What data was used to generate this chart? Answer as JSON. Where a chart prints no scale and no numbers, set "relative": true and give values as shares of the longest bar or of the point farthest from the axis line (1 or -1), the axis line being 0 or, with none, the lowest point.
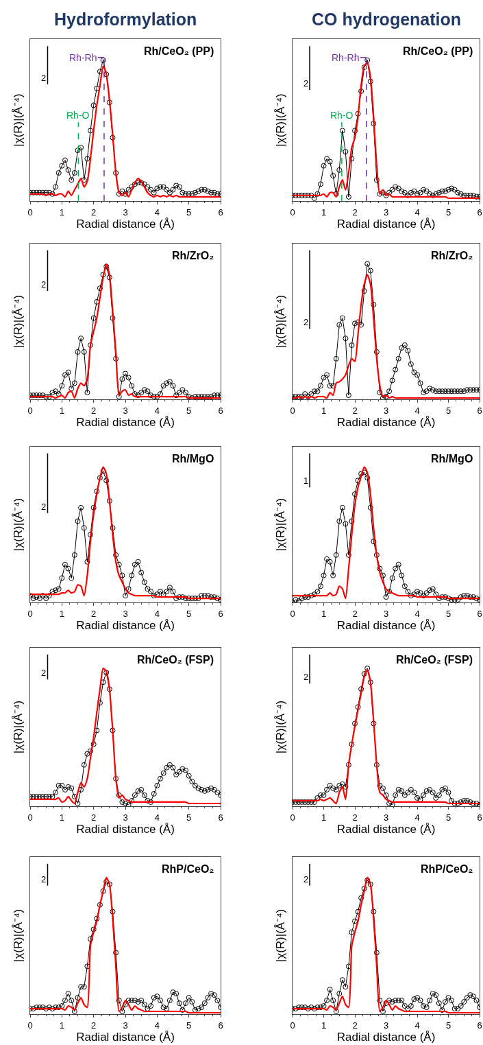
{
  "chart_data": [
    {
      "type": "line",
      "title": "Hydroformylation",
      "xlabel": "Radial distance (Å)",
      "ylabel": "|χ(R)|(Å⁻⁴)",
      "relative": true,
      "xlim": [
        0,
        6
      ],
      "xticks": [
        0,
        1,
        2,
        3,
        4,
        5,
        6
      ],
      "tick_labels": "x",
      "grid": false,
      "legend": false,
      "annotations": [
        "Rh/CeO₂ (PP)",
        "2"
      ],
      "ref_lines": [
        {
          "axis": "x",
          "value": 2.33,
          "label": "Rh-Rh",
          "color": "#7030a0",
          "line_style": "dashed"
        },
        {
          "axis": "x",
          "value": 1.52,
          "label": "Rh-O",
          "color": "#00b050",
          "line_style": "dashed"
        }
      ],
      "x": [
        0,
        0.1,
        0.2,
        0.3,
        0.4,
        0.5,
        0.6,
        0.7,
        0.8,
        0.9,
        1,
        1.1,
        1.2,
        1.3,
        1.4,
        1.5,
        1.6,
        1.7,
        1.8,
        1.9,
        2,
        2.1,
        2.2,
        2.3,
        2.4,
        2.5,
        2.6,
        2.7,
        2.8,
        2.9,
        3,
        3.1,
        3.2,
        3.3,
        3.4,
        3.5,
        3.6,
        3.7,
        3.8,
        3.9,
        4,
        4.1,
        4.2,
        4.3,
        4.4,
        4.5,
        4.6,
        4.7,
        4.8,
        4.9,
        5,
        5.1,
        5.2,
        5.3,
        5.4,
        5.5,
        5.6,
        5.7,
        5.8,
        5.9,
        6
      ],
      "series": [
        {
          "color": "#000000",
          "marker": "circle",
          "values": [
            0.06,
            0.06,
            0.06,
            0.06,
            0.06,
            0.06,
            0.06,
            0.05,
            0.1,
            0.2,
            0.25,
            0.29,
            0.22,
            0.15,
            0.2,
            0.36,
            0.38,
            0.15,
            0.3,
            0.5,
            0.68,
            0.8,
            0.92,
            1.0,
            0.9,
            0.7,
            0.45,
            0.2,
            0.05,
            0.07,
            0.05,
            0.08,
            0.1,
            0.12,
            0.13,
            0.13,
            0.12,
            0.1,
            0.08,
            0.06,
            0.09,
            0.1,
            0.1,
            0.08,
            0.06,
            0.08,
            0.11,
            0.1,
            0.06,
            0.05,
            0.05,
            0.05,
            0.06,
            0.07,
            0.08,
            0.08,
            0.07,
            0.06,
            0.06,
            0.05,
            0.05
          ]
        },
        {
          "color": "#ff0000",
          "marker": "none",
          "values": [
            0.05,
            0.05,
            0.05,
            0.05,
            0.05,
            0.04,
            0.05,
            0.05,
            0.04,
            0.05,
            0.05,
            0.03,
            0.07,
            0.04,
            0.08,
            0.12,
            0.16,
            0.1,
            0.14,
            0.3,
            0.5,
            0.68,
            0.82,
            0.96,
            0.9,
            0.72,
            0.47,
            0.2,
            0.06,
            0.04,
            0.06,
            0.03,
            0.08,
            0.13,
            0.16,
            0.14,
            0.1,
            0.06,
            0.04,
            0.03,
            0.04,
            0.03,
            0.04,
            0.03,
            0.04,
            0.03,
            0.04,
            0.03,
            0.03,
            0.03,
            0.03,
            0.03,
            0.03,
            0.03,
            0.03,
            0.03,
            0.03,
            0.03,
            0.03,
            0.03,
            0.03
          ]
        }
      ]
    },
    {
      "type": "line",
      "title": "CO hydrogenation",
      "xlabel": "Radial distance (Å)",
      "ylabel": "|χ(R)|(Å⁻⁴)",
      "relative": true,
      "xlim": [
        0,
        6
      ],
      "xticks": [
        0,
        1,
        2,
        3,
        4,
        5,
        6
      ],
      "tick_labels": "x",
      "grid": false,
      "legend": false,
      "annotations": [
        "Rh/CeO₂ (PP)",
        "2"
      ],
      "ref_lines": [
        {
          "axis": "x",
          "value": 2.37,
          "label": "Rh-Rh",
          "color": "#7030a0",
          "line_style": "dashed"
        },
        {
          "axis": "x",
          "value": 1.58,
          "label": "Rh-O",
          "color": "#00b050",
          "line_style": "dashed"
        }
      ],
      "x": [
        0,
        0.1,
        0.2,
        0.3,
        0.4,
        0.5,
        0.6,
        0.7,
        0.8,
        0.9,
        1,
        1.1,
        1.2,
        1.3,
        1.4,
        1.5,
        1.6,
        1.7,
        1.8,
        1.9,
        2,
        2.1,
        2.2,
        2.3,
        2.4,
        2.5,
        2.6,
        2.7,
        2.8,
        2.9,
        3,
        3.1,
        3.2,
        3.3,
        3.4,
        3.5,
        3.6,
        3.7,
        3.8,
        3.9,
        4,
        4.1,
        4.2,
        4.3,
        4.4,
        4.5,
        4.6,
        4.7,
        4.8,
        4.9,
        5,
        5.1,
        5.2,
        5.3,
        5.4,
        5.5,
        5.6,
        5.7,
        5.8,
        5.9,
        6
      ],
      "series": [
        {
          "color": "#000000",
          "marker": "circle",
          "values": [
            0.04,
            0.04,
            0.04,
            0.04,
            0.04,
            0.04,
            0.04,
            0.02,
            0.05,
            0.12,
            0.25,
            0.3,
            0.28,
            0.18,
            0.05,
            0.22,
            0.5,
            0.35,
            0.03,
            0.3,
            0.5,
            0.62,
            0.78,
            0.95,
            1.0,
            0.85,
            0.55,
            0.15,
            0.05,
            0.06,
            0.04,
            0.06,
            0.08,
            0.1,
            0.09,
            0.07,
            0.06,
            0.04,
            0.06,
            0.07,
            0.05,
            0.06,
            0.08,
            0.07,
            0.05,
            0.04,
            0.05,
            0.06,
            0.07,
            0.07,
            0.08,
            0.09,
            0.08,
            0.06,
            0.05,
            0.04,
            0.04,
            0.04,
            0.04,
            0.03,
            0.03
          ]
        },
        {
          "color": "#ff0000",
          "marker": "none",
          "values": [
            0.04,
            0.04,
            0.04,
            0.04,
            0.04,
            0.04,
            0.04,
            0.04,
            0.04,
            0.04,
            0.05,
            0.03,
            0.06,
            0.06,
            0.03,
            0.1,
            0.15,
            0.08,
            0.2,
            0.38,
            0.45,
            0.6,
            0.82,
            0.96,
            0.98,
            0.88,
            0.6,
            0.25,
            0.05,
            0.08,
            0.04,
            0.05,
            0.03,
            0.03,
            0.03,
            0.03,
            0.03,
            0.03,
            0.03,
            0.03,
            0.03,
            0.03,
            0.03,
            0.03,
            0.03,
            0.03,
            0.03,
            0.03,
            0.03,
            0.03,
            0.02,
            0.02,
            0.02,
            0.02,
            0.02,
            0.02,
            0.02,
            0.02,
            0.02,
            0.02,
            0.02
          ]
        }
      ]
    },
    {
      "type": "line",
      "xlabel": "Radial distance (Å)",
      "ylabel": "|χ(R)|(Å⁻⁴)",
      "relative": true,
      "xlim": [
        0,
        6
      ],
      "xticks": [
        0,
        1,
        2,
        3,
        4,
        5,
        6
      ],
      "tick_labels": "x",
      "grid": false,
      "legend": false,
      "annotations": [
        "Rh/ZrO₂",
        "2"
      ],
      "x": [
        0,
        0.1,
        0.2,
        0.3,
        0.4,
        0.5,
        0.6,
        0.7,
        0.8,
        0.9,
        1,
        1.1,
        1.2,
        1.3,
        1.4,
        1.5,
        1.6,
        1.7,
        1.8,
        1.9,
        2,
        2.1,
        2.2,
        2.3,
        2.4,
        2.5,
        2.6,
        2.7,
        2.8,
        2.9,
        3,
        3.1,
        3.2,
        3.3,
        3.4,
        3.5,
        3.6,
        3.7,
        3.8,
        3.9,
        4,
        4.1,
        4.2,
        4.3,
        4.4,
        4.5,
        4.6,
        4.7,
        4.8,
        4.9,
        5,
        5.1,
        5.2,
        5.3,
        5.4,
        5.5,
        5.6,
        5.7,
        5.8,
        5.9,
        6
      ],
      "series": [
        {
          "color": "#000000",
          "marker": "circle",
          "values": [
            0.03,
            0.03,
            0.03,
            0.03,
            0.03,
            0.02,
            0.02,
            0.05,
            0.06,
            0.04,
            0.1,
            0.18,
            0.2,
            0.08,
            0.12,
            0.35,
            0.45,
            0.35,
            0.05,
            0.4,
            0.6,
            0.72,
            0.82,
            0.92,
            0.98,
            0.9,
            0.6,
            0.3,
            0.02,
            0.15,
            0.19,
            0.16,
            0.1,
            0.04,
            0.03,
            0.05,
            0.07,
            0.06,
            0.03,
            0.02,
            0.02,
            0.04,
            0.1,
            0.12,
            0.13,
            0.1,
            0.03,
            0.05,
            0.07,
            0.05,
            0.02,
            0.01,
            0.02,
            0.02,
            0.02,
            0.02,
            0.02,
            0.02,
            0.03,
            0.03,
            0.03
          ]
        },
        {
          "color": "#ff0000",
          "marker": "none",
          "values": [
            0.02,
            0.02,
            0.02,
            0.02,
            0.02,
            0.02,
            0.02,
            0.02,
            0.01,
            0.02,
            0.03,
            0.01,
            0.05,
            0.06,
            0.01,
            0.08,
            0.12,
            0.1,
            0.15,
            0.4,
            0.5,
            0.6,
            0.75,
            0.9,
            1.0,
            0.92,
            0.65,
            0.35,
            0.03,
            0.06,
            0.07,
            0.03,
            0.04,
            0.02,
            0.02,
            0.02,
            0.02,
            0.02,
            0.02,
            0.02,
            0.02,
            0.02,
            0.02,
            0.02,
            0.02,
            0.02,
            0.02,
            0.02,
            0.02,
            0.02,
            0.01,
            0.01,
            0.01,
            0.01,
            0.01,
            0.01,
            0.01,
            0.01,
            0.01,
            0.01,
            0.01
          ]
        }
      ]
    },
    {
      "type": "line",
      "xlabel": "Radial distance (Å)",
      "ylabel": "|χ(R)|(Å⁻⁴)",
      "relative": true,
      "xlim": [
        0,
        6
      ],
      "xticks": [
        0,
        1,
        2,
        3,
        4,
        5,
        6
      ],
      "tick_labels": "x",
      "grid": false,
      "legend": false,
      "annotations": [
        "Rh/ZrO₂",
        "2"
      ],
      "x": [
        0,
        0.1,
        0.2,
        0.3,
        0.4,
        0.5,
        0.6,
        0.7,
        0.8,
        0.9,
        1,
        1.1,
        1.2,
        1.3,
        1.4,
        1.5,
        1.6,
        1.7,
        1.8,
        1.9,
        2,
        2.1,
        2.2,
        2.3,
        2.4,
        2.5,
        2.6,
        2.7,
        2.8,
        2.9,
        3,
        3.1,
        3.2,
        3.3,
        3.4,
        3.5,
        3.6,
        3.7,
        3.8,
        3.9,
        4,
        4.1,
        4.2,
        4.3,
        4.4,
        4.5,
        4.6,
        4.7,
        4.8,
        4.9,
        5,
        5.1,
        5.2,
        5.3,
        5.4,
        5.5,
        5.6,
        5.7,
        5.8,
        5.9,
        6
      ],
      "series": [
        {
          "color": "#000000",
          "marker": "circle",
          "values": [
            0.02,
            0.02,
            0.02,
            0.02,
            0.04,
            0.02,
            0.04,
            0.06,
            0.06,
            0.1,
            0.16,
            0.18,
            0.1,
            0.1,
            0.3,
            0.55,
            0.6,
            0.45,
            0.03,
            0.4,
            0.56,
            0.57,
            0.55,
            0.8,
            1.0,
            0.95,
            0.7,
            0.35,
            0.05,
            0.01,
            0.02,
            0.06,
            0.14,
            0.22,
            0.3,
            0.38,
            0.4,
            0.36,
            0.26,
            0.2,
            0.18,
            0.12,
            0.05,
            0.06,
            0.08,
            0.07,
            0.06,
            0.06,
            0.06,
            0.06,
            0.06,
            0.06,
            0.06,
            0.06,
            0.06,
            0.06,
            0.07,
            0.07,
            0.07,
            0.07,
            0.07
          ]
        },
        {
          "color": "#ff0000",
          "marker": "none",
          "values": [
            0.01,
            0.01,
            0.02,
            0.01,
            0.02,
            0.01,
            0.02,
            0.01,
            0.02,
            0.02,
            0.02,
            0.01,
            0.05,
            0.03,
            0.12,
            0.13,
            0.15,
            0.18,
            0.25,
            0.3,
            0.28,
            0.48,
            0.7,
            0.85,
            0.92,
            0.85,
            0.6,
            0.3,
            0.1,
            0.02,
            0.03,
            0.01,
            0.02,
            0.01,
            0.01,
            0.01,
            0.01,
            0.01,
            0.01,
            0.01,
            0.01,
            0.01,
            0.01,
            0.01,
            0.01,
            0.01,
            0.01,
            0.01,
            0.01,
            0.01,
            0.01,
            0.01,
            0.01,
            0.01,
            0.01,
            0.01,
            0.01,
            0.01,
            0.01,
            0.01,
            0.01
          ]
        }
      ]
    },
    {
      "type": "line",
      "xlabel": "Radial distance (Å)",
      "ylabel": "|χ(R)|(Å⁻⁴)",
      "relative": true,
      "xlim": [
        0,
        6
      ],
      "xticks": [
        0,
        1,
        2,
        3,
        4,
        5,
        6
      ],
      "tick_labels": "x",
      "grid": false,
      "legend": false,
      "annotations": [
        "Rh/MgO",
        "2"
      ],
      "x": [
        0,
        0.1,
        0.2,
        0.3,
        0.4,
        0.5,
        0.6,
        0.7,
        0.8,
        0.9,
        1,
        1.1,
        1.2,
        1.3,
        1.4,
        1.5,
        1.6,
        1.7,
        1.8,
        1.9,
        2,
        2.1,
        2.2,
        2.3,
        2.4,
        2.5,
        2.6,
        2.7,
        2.8,
        2.9,
        3,
        3.1,
        3.2,
        3.3,
        3.4,
        3.5,
        3.6,
        3.7,
        3.8,
        3.9,
        4,
        4.1,
        4.2,
        4.3,
        4.4,
        4.5,
        4.6,
        4.7,
        4.8,
        4.9,
        5,
        5.1,
        5.2,
        5.3,
        5.4,
        5.5,
        5.6,
        5.7,
        5.8,
        5.9,
        6
      ],
      "series": [
        {
          "color": "#000000",
          "marker": "circle",
          "values": [
            0.05,
            0.03,
            0.04,
            0.03,
            0.05,
            0.03,
            0.05,
            0.08,
            0.09,
            0.1,
            0.18,
            0.28,
            0.25,
            0.18,
            0.35,
            0.6,
            0.7,
            0.55,
            0.3,
            0.5,
            0.7,
            0.82,
            0.92,
            0.97,
            0.9,
            0.75,
            0.55,
            0.35,
            0.28,
            0.2,
            0.05,
            0.1,
            0.2,
            0.28,
            0.3,
            0.22,
            0.15,
            0.1,
            0.08,
            0.05,
            0.06,
            0.08,
            0.06,
            0.08,
            0.11,
            0.08,
            0.03,
            0.04,
            0.04,
            0.03,
            0.03,
            0.03,
            0.03,
            0.03,
            0.05,
            0.05,
            0.05,
            0.04,
            0.04,
            0.03,
            0.02
          ]
        },
        {
          "color": "#ff0000",
          "marker": "none",
          "values": [
            0.06,
            0.06,
            0.06,
            0.06,
            0.06,
            0.06,
            0.06,
            0.06,
            0.06,
            0.06,
            0.07,
            0.07,
            0.09,
            0.07,
            0.08,
            0.13,
            0.12,
            0.05,
            0.2,
            0.45,
            0.65,
            0.8,
            0.92,
            1.0,
            0.95,
            0.75,
            0.5,
            0.3,
            0.2,
            0.15,
            0.1,
            0.07,
            0.06,
            0.05,
            0.05,
            0.05,
            0.05,
            0.05,
            0.05,
            0.05,
            0.04,
            0.04,
            0.04,
            0.04,
            0.04,
            0.04,
            0.04,
            0.04,
            0.04,
            0.04,
            0.03,
            0.03,
            0.03,
            0.03,
            0.03,
            0.03,
            0.03,
            0.03,
            0.03,
            0.03,
            0.03
          ]
        }
      ]
    },
    {
      "type": "line",
      "xlabel": "Radial distance (Å)",
      "ylabel": "|χ(R)|(Å⁻⁴)",
      "relative": true,
      "xlim": [
        0,
        6
      ],
      "xticks": [
        0,
        1,
        2,
        3,
        4,
        5,
        6
      ],
      "tick_labels": "x",
      "grid": false,
      "legend": false,
      "annotations": [
        "Rh/MgO",
        "1"
      ],
      "x": [
        0,
        0.1,
        0.2,
        0.3,
        0.4,
        0.5,
        0.6,
        0.7,
        0.8,
        0.9,
        1,
        1.1,
        1.2,
        1.3,
        1.4,
        1.5,
        1.6,
        1.7,
        1.8,
        1.9,
        2,
        2.1,
        2.2,
        2.3,
        2.4,
        2.5,
        2.6,
        2.7,
        2.8,
        2.9,
        3,
        3.1,
        3.2,
        3.3,
        3.4,
        3.5,
        3.6,
        3.7,
        3.8,
        3.9,
        4,
        4.1,
        4.2,
        4.3,
        4.4,
        4.5,
        4.6,
        4.7,
        4.8,
        4.9,
        5,
        5.1,
        5.2,
        5.3,
        5.4,
        5.5,
        5.6,
        5.7,
        5.8,
        5.9,
        6
      ],
      "series": [
        {
          "color": "#000000",
          "marker": "circle",
          "values": [
            0.0,
            0.02,
            0.01,
            0.03,
            0.04,
            0.04,
            0.05,
            0.06,
            0.08,
            0.12,
            0.2,
            0.32,
            0.3,
            0.2,
            0.35,
            0.6,
            0.7,
            0.58,
            0.35,
            0.6,
            0.8,
            0.9,
            0.95,
            0.96,
            0.92,
            0.7,
            0.45,
            0.35,
            0.25,
            0.2,
            0.04,
            0.08,
            0.18,
            0.25,
            0.28,
            0.2,
            0.12,
            0.08,
            0.05,
            0.06,
            0.08,
            0.07,
            0.05,
            0.07,
            0.09,
            0.1,
            0.06,
            0.03,
            0.04,
            0.04,
            0.03,
            0.02,
            0.02,
            0.02,
            0.04,
            0.05,
            0.05,
            0.04,
            0.04,
            0.03,
            0.02
          ]
        },
        {
          "color": "#ff0000",
          "marker": "none",
          "values": [
            0.05,
            0.05,
            0.05,
            0.05,
            0.05,
            0.05,
            0.05,
            0.05,
            0.05,
            0.05,
            0.05,
            0.05,
            0.07,
            0.05,
            0.06,
            0.12,
            0.1,
            0.03,
            0.25,
            0.5,
            0.72,
            0.85,
            0.93,
            1.0,
            0.96,
            0.8,
            0.55,
            0.35,
            0.22,
            0.15,
            0.1,
            0.08,
            0.07,
            0.06,
            0.05,
            0.05,
            0.05,
            0.05,
            0.05,
            0.05,
            0.04,
            0.04,
            0.04,
            0.04,
            0.04,
            0.04,
            0.04,
            0.04,
            0.04,
            0.04,
            0.03,
            0.03,
            0.03,
            0.03,
            0.03,
            0.03,
            0.03,
            0.03,
            0.03,
            0.03,
            0.03
          ]
        }
      ]
    },
    {
      "type": "line",
      "xlabel": "Radial distance (Å)",
      "ylabel": "|χ(R)|(Å⁻⁴)",
      "relative": true,
      "xlim": [
        0,
        6
      ],
      "xticks": [
        0,
        1,
        2,
        3,
        4,
        5,
        6
      ],
      "tick_labels": "x",
      "grid": false,
      "legend": false,
      "annotations": [
        "Rh/CeO₂ (FSP)",
        "2"
      ],
      "x": [
        0,
        0.1,
        0.2,
        0.3,
        0.4,
        0.5,
        0.6,
        0.7,
        0.8,
        0.9,
        1,
        1.1,
        1.2,
        1.3,
        1.4,
        1.5,
        1.6,
        1.7,
        1.8,
        1.9,
        2,
        2.1,
        2.2,
        2.3,
        2.4,
        2.5,
        2.6,
        2.7,
        2.8,
        2.9,
        3,
        3.1,
        3.2,
        3.3,
        3.4,
        3.5,
        3.6,
        3.7,
        3.8,
        3.9,
        4,
        4.1,
        4.2,
        4.3,
        4.4,
        4.5,
        4.6,
        4.7,
        4.8,
        4.9,
        5,
        5.1,
        5.2,
        5.3,
        5.4,
        5.5,
        5.6,
        5.7,
        5.8,
        5.9,
        6
      ],
      "series": [
        {
          "color": "#000000",
          "marker": "circle",
          "values": [
            0.07,
            0.07,
            0.07,
            0.07,
            0.07,
            0.07,
            0.07,
            0.07,
            0.1,
            0.15,
            0.15,
            0.12,
            0.14,
            0.13,
            0.07,
            0.02,
            0.12,
            0.3,
            0.38,
            0.4,
            0.45,
            0.55,
            0.75,
            0.9,
            0.97,
            0.85,
            0.55,
            0.2,
            0.08,
            0.03,
            0.02,
            0.01,
            0.04,
            0.08,
            0.11,
            0.12,
            0.08,
            0.04,
            0.03,
            0.09,
            0.15,
            0.2,
            0.24,
            0.28,
            0.3,
            0.28,
            0.23,
            0.25,
            0.27,
            0.26,
            0.22,
            0.18,
            0.15,
            0.13,
            0.12,
            0.11,
            0.12,
            0.13,
            0.12,
            0.1,
            0.08
          ]
        },
        {
          "color": "#ff0000",
          "marker": "none",
          "values": [
            0.05,
            0.05,
            0.05,
            0.05,
            0.05,
            0.05,
            0.05,
            0.05,
            0.05,
            0.06,
            0.03,
            0.04,
            0.07,
            0.04,
            0.02,
            0.1,
            0.17,
            0.14,
            0.2,
            0.35,
            0.5,
            0.68,
            0.85,
            1.0,
            0.98,
            0.85,
            0.55,
            0.2,
            0.06,
            0.08,
            0.05,
            0.04,
            0.03,
            0.03,
            0.03,
            0.03,
            0.03,
            0.03,
            0.03,
            0.03,
            0.03,
            0.03,
            0.03,
            0.03,
            0.03,
            0.03,
            0.03,
            0.03,
            0.03,
            0.03,
            0.02,
            0.02,
            0.02,
            0.02,
            0.02,
            0.02,
            0.02,
            0.02,
            0.02,
            0.02,
            0.02
          ]
        }
      ]
    },
    {
      "type": "line",
      "xlabel": "Radial distance (Å)",
      "ylabel": "|χ(R)|(Å⁻⁴)",
      "relative": true,
      "xlim": [
        0,
        6
      ],
      "xticks": [
        0,
        1,
        2,
        3,
        4,
        5,
        6
      ],
      "tick_labels": "x",
      "grid": false,
      "legend": false,
      "annotations": [
        "Rh/CeO₂ (FSP)",
        "2"
      ],
      "x": [
        0,
        0.1,
        0.2,
        0.3,
        0.4,
        0.5,
        0.6,
        0.7,
        0.8,
        0.9,
        1,
        1.1,
        1.2,
        1.3,
        1.4,
        1.5,
        1.6,
        1.7,
        1.8,
        1.9,
        2,
        2.1,
        2.2,
        2.3,
        2.4,
        2.5,
        2.6,
        2.7,
        2.8,
        2.9,
        3,
        3.1,
        3.2,
        3.3,
        3.4,
        3.5,
        3.6,
        3.7,
        3.8,
        3.9,
        4,
        4.1,
        4.2,
        4.3,
        4.4,
        4.5,
        4.6,
        4.7,
        4.8,
        4.9,
        5,
        5.1,
        5.2,
        5.3,
        5.4,
        5.5,
        5.6,
        5.7,
        5.8,
        5.9,
        6
      ],
      "series": [
        {
          "color": "#000000",
          "marker": "circle",
          "values": [
            0.03,
            0.03,
            0.03,
            0.03,
            0.03,
            0.03,
            0.03,
            0.03,
            0.06,
            0.08,
            0.08,
            0.12,
            0.15,
            0.13,
            0.12,
            0.15,
            0.16,
            0.14,
            0.3,
            0.45,
            0.6,
            0.72,
            0.85,
            0.96,
            1.0,
            0.9,
            0.6,
            0.3,
            0.15,
            0.13,
            0.08,
            0.02,
            0.01,
            0.08,
            0.12,
            0.11,
            0.08,
            0.1,
            0.12,
            0.1,
            0.06,
            0.05,
            0.08,
            0.11,
            0.12,
            0.1,
            0.06,
            0.08,
            0.12,
            0.13,
            0.1,
            0.04,
            0.02,
            0.02,
            0.03,
            0.04,
            0.04,
            0.03,
            0.02,
            0.02,
            0.01
          ]
        },
        {
          "color": "#ff0000",
          "marker": "none",
          "values": [
            0.04,
            0.04,
            0.04,
            0.04,
            0.04,
            0.04,
            0.04,
            0.04,
            0.04,
            0.05,
            0.04,
            0.05,
            0.06,
            0.04,
            0.02,
            0.1,
            0.14,
            0.05,
            0.3,
            0.45,
            0.58,
            0.7,
            0.82,
            0.94,
            0.99,
            0.9,
            0.62,
            0.3,
            0.1,
            0.08,
            0.05,
            0.04,
            0.03,
            0.03,
            0.03,
            0.03,
            0.03,
            0.03,
            0.03,
            0.03,
            0.03,
            0.03,
            0.03,
            0.03,
            0.03,
            0.03,
            0.03,
            0.03,
            0.03,
            0.03,
            0.02,
            0.02,
            0.02,
            0.02,
            0.02,
            0.02,
            0.02,
            0.02,
            0.02,
            0.02,
            0.02
          ]
        }
      ]
    },
    {
      "type": "line",
      "xlabel": "Radial distance (Å)",
      "ylabel": "|χ(R)|(Å⁻⁴)",
      "relative": true,
      "xlim": [
        0,
        6
      ],
      "xticks": [
        0,
        1,
        2,
        3,
        4,
        5,
        6
      ],
      "tick_labels": "x",
      "grid": false,
      "legend": false,
      "annotations": [
        "RhP/CeO₂",
        "2"
      ],
      "x": [
        0,
        0.1,
        0.2,
        0.3,
        0.4,
        0.5,
        0.6,
        0.7,
        0.8,
        0.9,
        1,
        1.1,
        1.2,
        1.3,
        1.4,
        1.5,
        1.6,
        1.7,
        1.8,
        1.9,
        2,
        2.1,
        2.2,
        2.3,
        2.4,
        2.5,
        2.6,
        2.7,
        2.8,
        2.9,
        3,
        3.1,
        3.2,
        3.3,
        3.4,
        3.5,
        3.6,
        3.7,
        3.8,
        3.9,
        4,
        4.1,
        4.2,
        4.3,
        4.4,
        4.5,
        4.6,
        4.7,
        4.8,
        4.9,
        5,
        5.1,
        5.2,
        5.3,
        5.4,
        5.5,
        5.6,
        5.7,
        5.8,
        5.9,
        6
      ],
      "series": [
        {
          "color": "#000000",
          "marker": "circle",
          "values": [
            0.04,
            0.04,
            0.05,
            0.05,
            0.05,
            0.04,
            0.05,
            0.04,
            0.05,
            0.05,
            0.06,
            0.1,
            0.15,
            0.1,
            0.02,
            0.12,
            0.2,
            0.2,
            0.35,
            0.55,
            0.62,
            0.7,
            0.8,
            0.9,
            0.97,
            0.95,
            0.75,
            0.45,
            0.1,
            0.02,
            0.07,
            0.1,
            0.1,
            0.1,
            0.09,
            0.1,
            0.07,
            0.04,
            0.06,
            0.12,
            0.13,
            0.1,
            0.05,
            0.04,
            0.1,
            0.16,
            0.15,
            0.08,
            0.03,
            0.08,
            0.12,
            0.09,
            0.03,
            0.04,
            0.05,
            0.08,
            0.12,
            0.15,
            0.14,
            0.1,
            0.05
          ]
        },
        {
          "color": "#ff0000",
          "marker": "none",
          "values": [
            0.04,
            0.04,
            0.04,
            0.04,
            0.04,
            0.04,
            0.04,
            0.04,
            0.04,
            0.04,
            0.04,
            0.03,
            0.06,
            0.05,
            0.03,
            0.08,
            0.12,
            0.07,
            0.05,
            0.5,
            0.6,
            0.68,
            0.8,
            0.9,
            1.0,
            0.95,
            0.7,
            0.35,
            0.02,
            0.05,
            0.1,
            0.07,
            0.03,
            0.06,
            0.04,
            0.03,
            0.02,
            0.02,
            0.02,
            0.02,
            0.02,
            0.02,
            0.02,
            0.02,
            0.02,
            0.02,
            0.02,
            0.02,
            0.02,
            0.02,
            0.01,
            0.01,
            0.01,
            0.01,
            0.01,
            0.01,
            0.01,
            0.01,
            0.01,
            0.01,
            0.01
          ]
        }
      ]
    },
    {
      "type": "line",
      "xlabel": "Radial distance (Å)",
      "ylabel": "|χ(R)|(Å⁻⁴)",
      "relative": true,
      "xlim": [
        0,
        6
      ],
      "xticks": [
        0,
        1,
        2,
        3,
        4,
        5,
        6
      ],
      "tick_labels": "x",
      "grid": false,
      "legend": false,
      "annotations": [
        "RhP/CeO₂",
        "2"
      ],
      "x": [
        0,
        0.1,
        0.2,
        0.3,
        0.4,
        0.5,
        0.6,
        0.7,
        0.8,
        0.9,
        1,
        1.1,
        1.2,
        1.3,
        1.4,
        1.5,
        1.6,
        1.7,
        1.8,
        1.9,
        2,
        2.1,
        2.2,
        2.3,
        2.4,
        2.5,
        2.6,
        2.7,
        2.8,
        2.9,
        3,
        3.1,
        3.2,
        3.3,
        3.4,
        3.5,
        3.6,
        3.7,
        3.8,
        3.9,
        4,
        4.1,
        4.2,
        4.3,
        4.4,
        4.5,
        4.6,
        4.7,
        4.8,
        4.9,
        5,
        5.1,
        5.2,
        5.3,
        5.4,
        5.5,
        5.6,
        5.7,
        5.8,
        5.9,
        6
      ],
      "series": [
        {
          "color": "#000000",
          "marker": "circle",
          "values": [
            0.04,
            0.04,
            0.05,
            0.05,
            0.05,
            0.04,
            0.05,
            0.04,
            0.05,
            0.05,
            0.06,
            0.1,
            0.18,
            0.1,
            0.02,
            0.15,
            0.25,
            0.2,
            0.35,
            0.6,
            0.68,
            0.75,
            0.85,
            0.92,
            0.98,
            0.95,
            0.75,
            0.45,
            0.1,
            0.02,
            0.08,
            0.1,
            0.09,
            0.1,
            0.1,
            0.1,
            0.06,
            0.04,
            0.06,
            0.11,
            0.12,
            0.1,
            0.06,
            0.05,
            0.1,
            0.15,
            0.14,
            0.08,
            0.03,
            0.09,
            0.12,
            0.1,
            0.04,
            0.04,
            0.06,
            0.09,
            0.12,
            0.14,
            0.13,
            0.1,
            0.05
          ]
        },
        {
          "color": "#ff0000",
          "marker": "none",
          "values": [
            0.04,
            0.04,
            0.04,
            0.04,
            0.04,
            0.04,
            0.04,
            0.04,
            0.04,
            0.04,
            0.04,
            0.03,
            0.06,
            0.05,
            0.03,
            0.08,
            0.13,
            0.07,
            0.05,
            0.5,
            0.6,
            0.68,
            0.8,
            0.9,
            1.0,
            0.95,
            0.7,
            0.35,
            0.02,
            0.05,
            0.1,
            0.07,
            0.03,
            0.06,
            0.04,
            0.03,
            0.02,
            0.02,
            0.02,
            0.02,
            0.02,
            0.02,
            0.02,
            0.02,
            0.02,
            0.02,
            0.02,
            0.02,
            0.02,
            0.02,
            0.01,
            0.01,
            0.01,
            0.01,
            0.01,
            0.01,
            0.01,
            0.01,
            0.01,
            0.01,
            0.01
          ]
        }
      ]
    }
  ]
}
